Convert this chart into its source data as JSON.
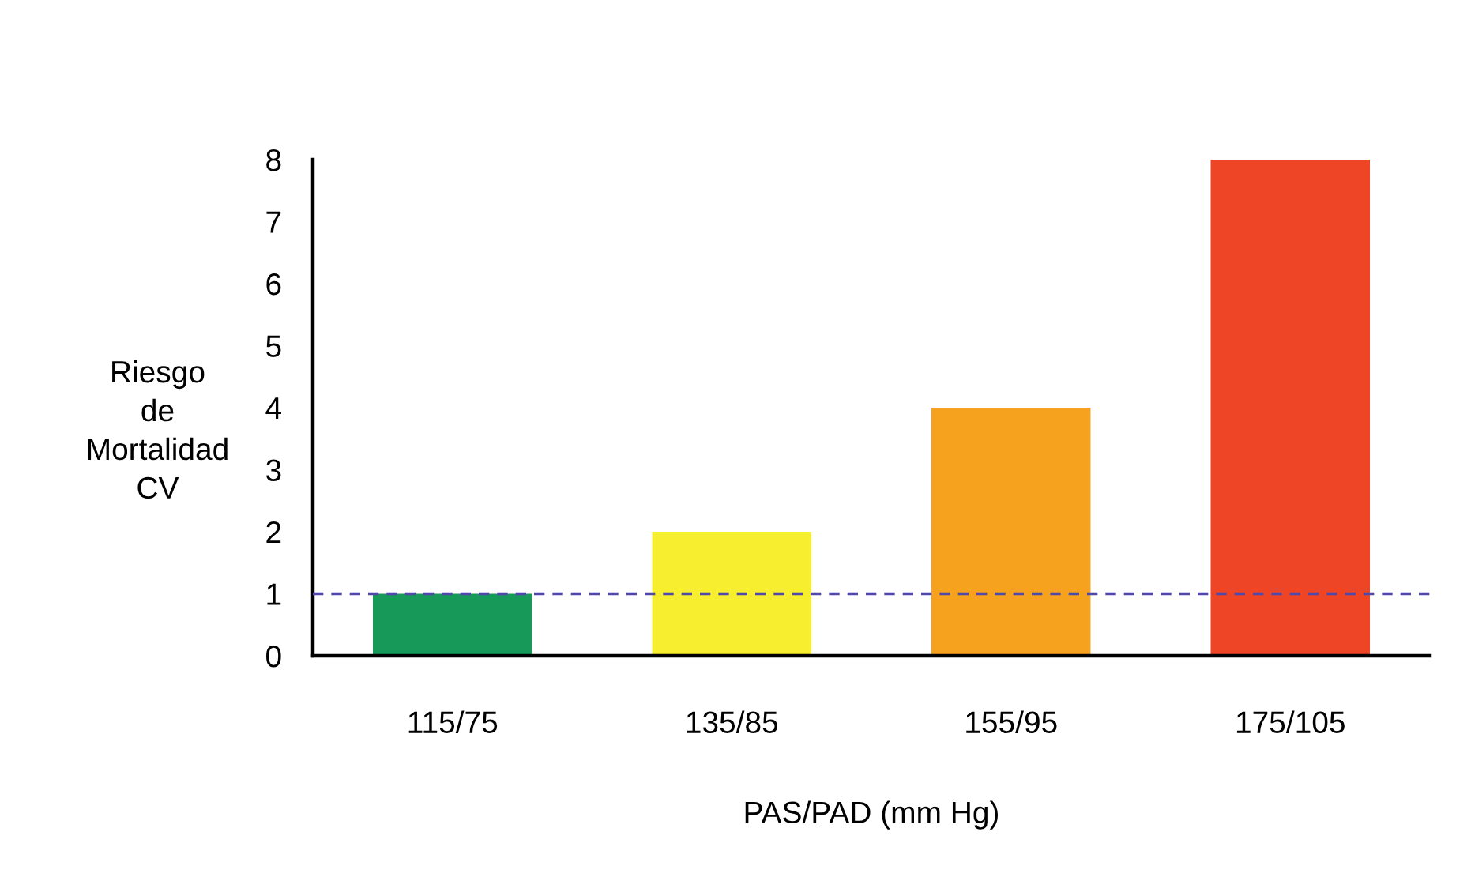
{
  "chart_data": {
    "type": "bar",
    "xlabel": "PAS/PAD (mm Hg)",
    "ylabel": "Riesgo\nde\nMortalidad\nCV",
    "categories": [
      "115/75",
      "135/85",
      "155/95",
      "175/105"
    ],
    "values": [
      1,
      2,
      4,
      8
    ],
    "colors": [
      "#17995a",
      "#f6ee2e",
      "#f6a21f",
      "#ee4526"
    ],
    "ylim": [
      0,
      8
    ],
    "yticks": [
      0,
      1,
      2,
      3,
      4,
      5,
      6,
      7,
      8
    ],
    "grid": false,
    "ref_lines": [
      {
        "axis": "y",
        "value": 1,
        "color": "#5148a8",
        "line_style": "dashed"
      }
    ]
  }
}
